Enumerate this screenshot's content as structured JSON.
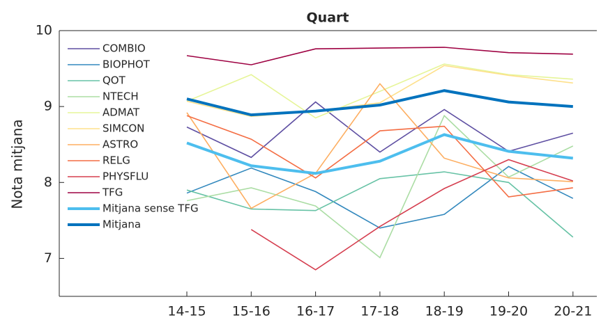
{
  "chart_data": {
    "type": "line",
    "title": "Quart",
    "ylabel": "Nota mitjana",
    "categories": [
      "14-15",
      "15-16",
      "16-17",
      "17-18",
      "18-19",
      "19-20",
      "20-21"
    ],
    "ylim": [
      6.5,
      10
    ],
    "yticks": [
      7,
      8,
      9,
      10
    ],
    "series": [
      {
        "name": "COMBIO",
        "color": "#5e4fa2",
        "values": [
          8.73,
          8.33,
          9.06,
          8.4,
          8.96,
          8.41,
          8.65
        ]
      },
      {
        "name": "BIOPHOT",
        "color": "#3288bd",
        "values": [
          7.86,
          8.19,
          7.88,
          7.4,
          7.58,
          8.21,
          7.79
        ]
      },
      {
        "name": "QOT",
        "color": "#66c2a5",
        "values": [
          7.9,
          7.65,
          7.63,
          8.05,
          8.14,
          8.0,
          7.28
        ]
      },
      {
        "name": "NTECH",
        "color": "#abdda4",
        "values": [
          7.76,
          7.93,
          7.69,
          7.01,
          8.88,
          8.07,
          8.48
        ]
      },
      {
        "name": "ADMAT",
        "color": "#e6f598",
        "values": [
          9.07,
          9.42,
          8.85,
          9.2,
          9.56,
          9.42,
          9.36
        ]
      },
      {
        "name": "SIMCON",
        "color": "#fee08b",
        "values": [
          9.07,
          8.87,
          8.94,
          9.05,
          9.54,
          9.41,
          9.31
        ]
      },
      {
        "name": "ASTRO",
        "color": "#fdae61",
        "values": [
          8.92,
          7.66,
          8.12,
          9.3,
          8.32,
          8.06,
          8.01
        ]
      },
      {
        "name": "RELG",
        "color": "#f46d43",
        "values": [
          8.88,
          8.57,
          8.06,
          8.68,
          8.74,
          7.81,
          7.93
        ]
      },
      {
        "name": "PHYSFLU",
        "color": "#d53e4f",
        "values": [
          null,
          7.38,
          6.85,
          7.42,
          7.92,
          8.3,
          8.02
        ]
      },
      {
        "name": "TFG",
        "color": "#9e0142",
        "values": [
          9.67,
          9.55,
          9.76,
          9.77,
          9.78,
          9.71,
          9.69
        ]
      },
      {
        "name": "Mitjana sense TFG",
        "color": "#4dbeee",
        "values": [
          8.52,
          8.22,
          8.12,
          8.28,
          8.63,
          8.41,
          8.32
        ]
      },
      {
        "name": "Mitjana",
        "color": "#0072bd",
        "values": [
          9.1,
          8.89,
          8.94,
          9.02,
          9.21,
          9.06,
          9.0
        ]
      }
    ]
  }
}
